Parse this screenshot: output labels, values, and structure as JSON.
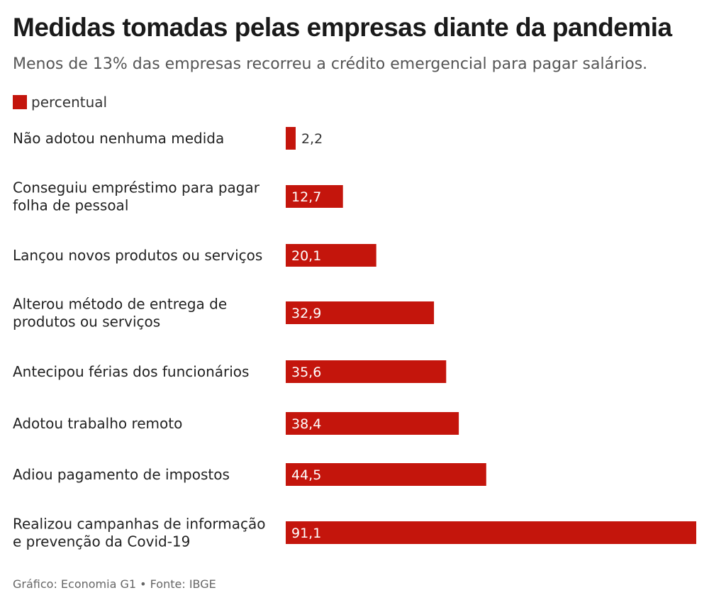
{
  "header": {
    "title": "Medidas tomadas pelas empresas diante da pandemia",
    "subtitle": "Menos de 13% das empresas recorreu a crédito emergencial para pagar salários."
  },
  "footer": {
    "source": "Gráfico: Economia G1 • Fonte: IBGE"
  },
  "colors": {
    "bar": "#c4150c",
    "label_inside": "#ffffff",
    "label_outside": "#333333"
  },
  "chart_data": {
    "type": "bar",
    "orientation": "horizontal",
    "title": "Medidas tomadas pelas empresas diante da pandemia",
    "subtitle": "Menos de 13% das empresas recorreu a crédito emergencial para pagar salários.",
    "legend_position": "top-left",
    "grid": false,
    "xlim": [
      0,
      91.1
    ],
    "categories": [
      [
        "Não adotou nenhuma medida"
      ],
      [
        "Conseguiu empréstimo para pagar",
        "folha de pessoal"
      ],
      [
        "Lançou novos produtos ou serviços"
      ],
      [
        "Alterou método de entrega de",
        "produtos ou serviços"
      ],
      [
        "Antecipou férias dos funcionários"
      ],
      [
        "Adotou trabalho remoto"
      ],
      [
        "Adiou pagamento de impostos"
      ],
      [
        "Realizou campanhas de informação",
        "e prevenção da Covid-19"
      ]
    ],
    "series": [
      {
        "name": "percentual",
        "values": [
          2.2,
          12.7,
          20.1,
          32.9,
          35.6,
          38.4,
          44.5,
          91.1
        ],
        "labels": [
          "2,2",
          "12,7",
          "20,1",
          "32,9",
          "35,6",
          "38,4",
          "44,5",
          "91,1"
        ]
      }
    ]
  }
}
